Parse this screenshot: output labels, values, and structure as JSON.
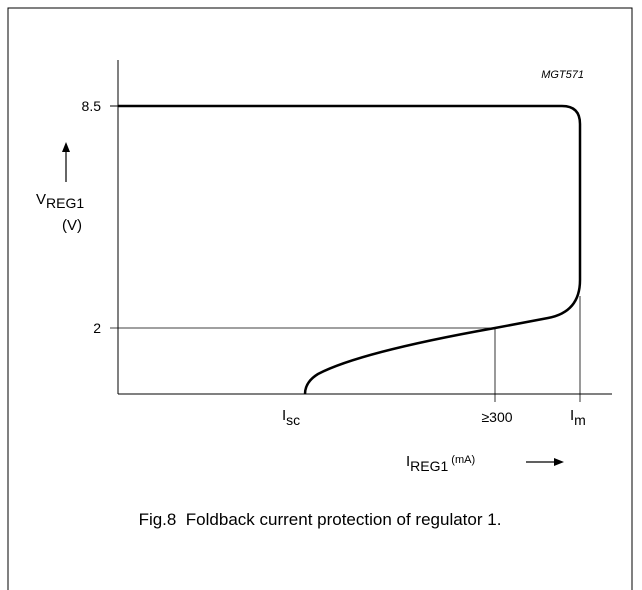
{
  "figure_id": "MGT571",
  "y_axis": {
    "label": "V",
    "label_sub": "REG1",
    "unit": "(V)",
    "ticks": [
      "8.5",
      "2"
    ]
  },
  "x_axis": {
    "label": "I",
    "label_sub": "REG1",
    "unit": "(mA)",
    "ticks": [
      {
        "main": "I",
        "sub": "sc"
      },
      "≥300",
      {
        "main": "I",
        "sub": "m"
      }
    ]
  },
  "caption": "Fig.8  Foldback current protection of regulator 1."
}
